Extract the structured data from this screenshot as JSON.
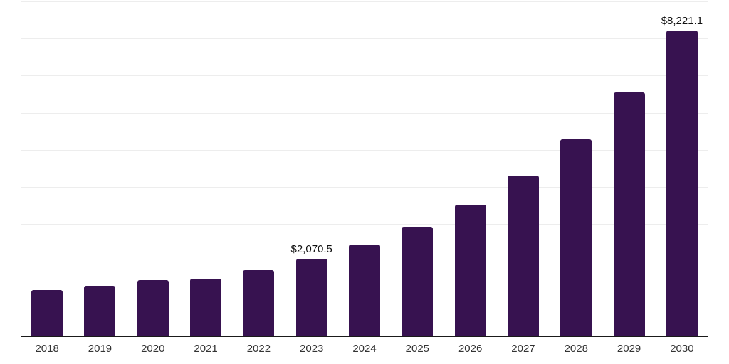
{
  "chart_data": {
    "type": "bar",
    "title": "",
    "xlabel": "",
    "ylabel": "",
    "categories": [
      "2018",
      "2019",
      "2020",
      "2021",
      "2022",
      "2023",
      "2024",
      "2025",
      "2026",
      "2027",
      "2028",
      "2029",
      "2030"
    ],
    "values": [
      1220,
      1340,
      1500,
      1530,
      1760,
      2070.5,
      2455,
      2925,
      3530,
      4305,
      5290,
      6545,
      8221.1
    ],
    "value_labels": [
      null,
      null,
      null,
      null,
      null,
      "$2,070.5",
      null,
      null,
      null,
      null,
      null,
      null,
      "$8,221.1"
    ],
    "ylim": [
      0,
      9000
    ],
    "gridline_step": 1000,
    "grid": "horizontal-only",
    "legend": "none",
    "colors": {
      "bar": "#371250",
      "axis": "#1a1a1a",
      "gridline": "#ededed",
      "value_label": "#111111",
      "tick_label": "#333333",
      "background": "#ffffff"
    }
  }
}
